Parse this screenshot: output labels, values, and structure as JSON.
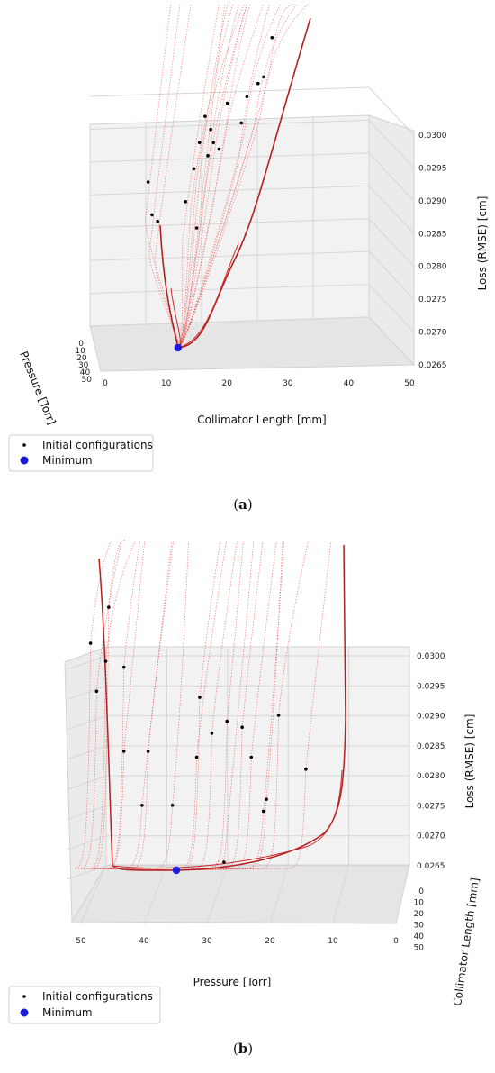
{
  "chart_data": [
    {
      "type": "line",
      "panel_label": "a",
      "xlabel": "Collimator Length [mm]",
      "ylabel": "Pressure [Torr]",
      "zlabel": "Loss (RMSE) [cm]",
      "x_ticks": [
        "0",
        "10",
        "20",
        "30",
        "40",
        "50"
      ],
      "y_ticks": [
        "0",
        "10",
        "20",
        "30",
        "40",
        "50"
      ],
      "z_ticks": [
        "0.0265",
        "0.0270",
        "0.0275",
        "0.0280",
        "0.0285",
        "0.0290",
        "0.0295",
        "0.0300"
      ],
      "xlim": [
        0,
        50
      ],
      "ylim": [
        0,
        50
      ],
      "zlim": [
        0.0265,
        0.03
      ],
      "legend": [
        "Initial configurations",
        "Minimum"
      ],
      "legend_position": "bottom-left",
      "colors": {
        "trajectories": "#e83a3a",
        "initial": "#000000",
        "minimum": "#1a1ad8"
      },
      "initial_configurations": [
        {
          "x": 9.3,
          "z": 0.0286
        },
        {
          "x": 10.0,
          "z": 0.0281
        },
        {
          "x": 11.0,
          "z": 0.028
        },
        {
          "x": 17.5,
          "z": 0.0288
        },
        {
          "x": 18.5,
          "z": 0.0292
        },
        {
          "x": 19.5,
          "z": 0.0296
        },
        {
          "x": 20.5,
          "z": 0.0294
        },
        {
          "x": 21.0,
          "z": 0.0292
        },
        {
          "x": 20.0,
          "z": 0.029
        },
        {
          "x": 22.0,
          "z": 0.0291
        },
        {
          "x": 23.5,
          "z": 0.0298
        },
        {
          "x": 26.0,
          "z": 0.0295
        },
        {
          "x": 27.0,
          "z": 0.0299
        },
        {
          "x": 29.0,
          "z": 0.0301
        },
        {
          "x": 30.0,
          "z": 0.0302
        },
        {
          "x": 31.5,
          "z": 0.0308
        },
        {
          "x": 18.0,
          "z": 0.0279
        },
        {
          "x": 16.0,
          "z": 0.0283
        }
      ],
      "minimum": {
        "x": 14.0,
        "z": 0.02652
      }
    },
    {
      "type": "line",
      "panel_label": "b",
      "xlabel": "Pressure [Torr]",
      "ylabel": "Collimator Length [mm]",
      "zlabel": "Loss (RMSE) [cm]",
      "x_ticks": [
        "50",
        "40",
        "30",
        "20",
        "10",
        "0"
      ],
      "y_ticks": [
        "0",
        "10",
        "20",
        "30",
        "40",
        "50"
      ],
      "z_ticks": [
        "0.0265",
        "0.0270",
        "0.0275",
        "0.0280",
        "0.0285",
        "0.0290",
        "0.0295",
        "0.0300"
      ],
      "xlim": [
        50,
        0
      ],
      "ylim": [
        0,
        50
      ],
      "zlim": [
        0.0265,
        0.03
      ],
      "legend": [
        "Initial configurations",
        "Minimum"
      ],
      "legend_position": "bottom-left",
      "colors": {
        "trajectories": "#e83a3a",
        "initial": "#000000",
        "minimum": "#1a1ad8"
      },
      "initial_configurations": [
        {
          "x": 47.5,
          "z": 0.0309
        },
        {
          "x": 50.5,
          "z": 0.0303
        },
        {
          "x": 49.5,
          "z": 0.0295
        },
        {
          "x": 48.0,
          "z": 0.03
        },
        {
          "x": 45.0,
          "z": 0.0299
        },
        {
          "x": 45.0,
          "z": 0.0285
        },
        {
          "x": 41.0,
          "z": 0.0285
        },
        {
          "x": 42.0,
          "z": 0.0276
        },
        {
          "x": 37.0,
          "z": 0.0276
        },
        {
          "x": 32.5,
          "z": 0.0294
        },
        {
          "x": 30.5,
          "z": 0.0288
        },
        {
          "x": 33.0,
          "z": 0.0284
        },
        {
          "x": 28.0,
          "z": 0.029
        },
        {
          "x": 25.5,
          "z": 0.0289
        },
        {
          "x": 24.0,
          "z": 0.0284
        },
        {
          "x": 19.5,
          "z": 0.0291
        },
        {
          "x": 21.5,
          "z": 0.0277
        },
        {
          "x": 22.0,
          "z": 0.0275
        },
        {
          "x": 15.0,
          "z": 0.0282
        },
        {
          "x": 28.5,
          "z": 0.02665
        }
      ],
      "minimum": {
        "x": 38.5,
        "z": 0.0265
      }
    }
  ]
}
